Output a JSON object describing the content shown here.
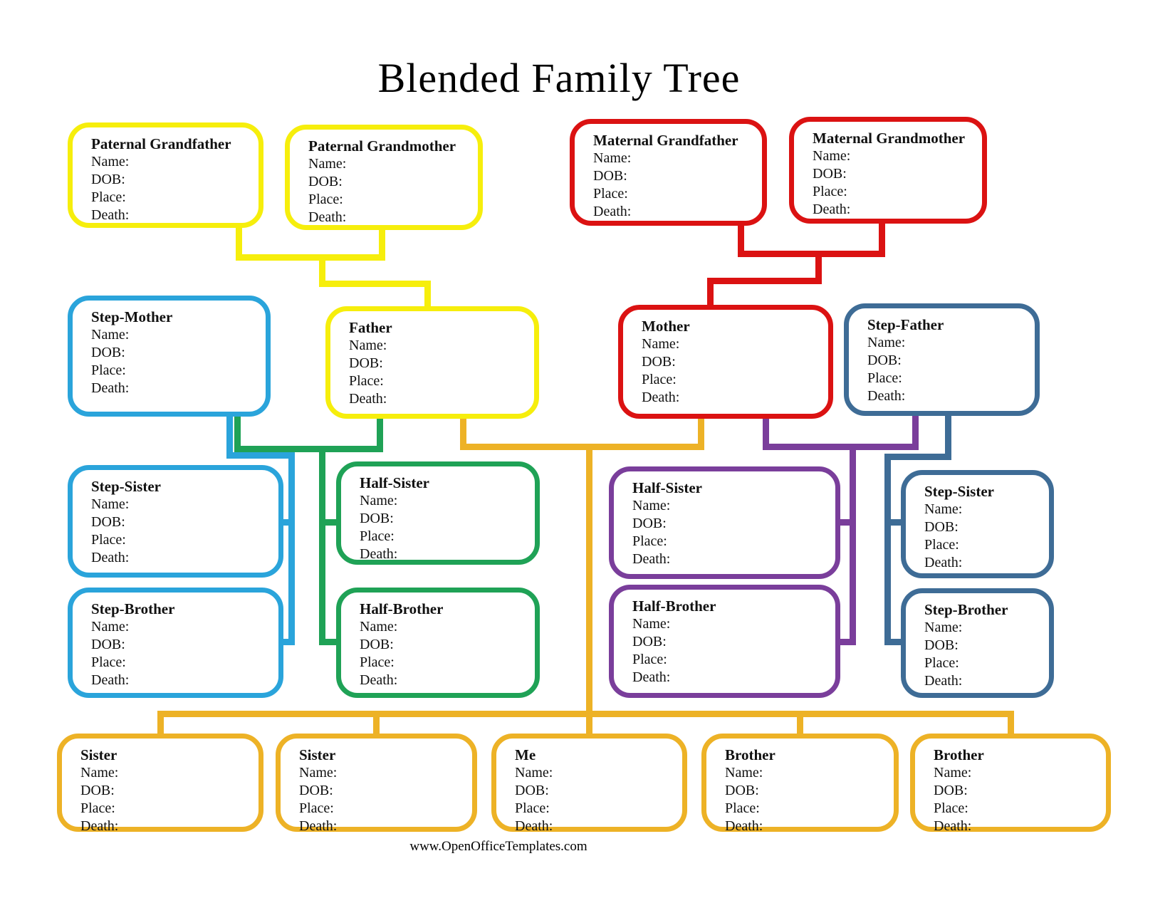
{
  "page": {
    "title": "Blended Family Tree",
    "footer": "www.OpenOfficeTemplates.com"
  },
  "palette": {
    "yellow": "#F6EE0C",
    "red": "#DB1212",
    "light_blue": "#2AA4DB",
    "green": "#1FA256",
    "dark_blue": "#3E6C96",
    "purple": "#7A3E9B",
    "orange": "#EDB226",
    "text": "#111111"
  },
  "field_labels": [
    "Name:",
    "DOB:",
    "Place:",
    "Death:"
  ],
  "people": [
    {
      "id": "paternal-grandfather",
      "title": "Paternal Grandfather",
      "color": "yellow"
    },
    {
      "id": "paternal-grandmother",
      "title": "Paternal Grandmother",
      "color": "yellow"
    },
    {
      "id": "maternal-grandfather",
      "title": "Maternal Grandfather",
      "color": "red"
    },
    {
      "id": "maternal-grandmother",
      "title": "Maternal Grandmother",
      "color": "red"
    },
    {
      "id": "step-mother",
      "title": "Step-Mother",
      "color": "light_blue"
    },
    {
      "id": "father",
      "title": "Father",
      "color": "yellow"
    },
    {
      "id": "mother",
      "title": "Mother",
      "color": "red"
    },
    {
      "id": "step-father",
      "title": "Step-Father",
      "color": "dark_blue"
    },
    {
      "id": "step-sister-left",
      "title": "Step-Sister",
      "color": "light_blue"
    },
    {
      "id": "half-sister-left",
      "title": "Half-Sister",
      "color": "green"
    },
    {
      "id": "half-sister-right",
      "title": "Half-Sister",
      "color": "purple"
    },
    {
      "id": "step-sister-right",
      "title": "Step-Sister",
      "color": "dark_blue"
    },
    {
      "id": "step-brother-left",
      "title": "Step-Brother",
      "color": "light_blue"
    },
    {
      "id": "half-brother-left",
      "title": "Half-Brother",
      "color": "green"
    },
    {
      "id": "half-brother-right",
      "title": "Half-Brother",
      "color": "purple"
    },
    {
      "id": "step-brother-right",
      "title": "Step-Brother",
      "color": "dark_blue"
    },
    {
      "id": "sister-1",
      "title": "Sister",
      "color": "orange"
    },
    {
      "id": "sister-2",
      "title": "Sister",
      "color": "orange"
    },
    {
      "id": "me",
      "title": "Me",
      "color": "orange"
    },
    {
      "id": "brother-1",
      "title": "Brother",
      "color": "orange"
    },
    {
      "id": "brother-2",
      "title": "Brother",
      "color": "orange"
    }
  ]
}
